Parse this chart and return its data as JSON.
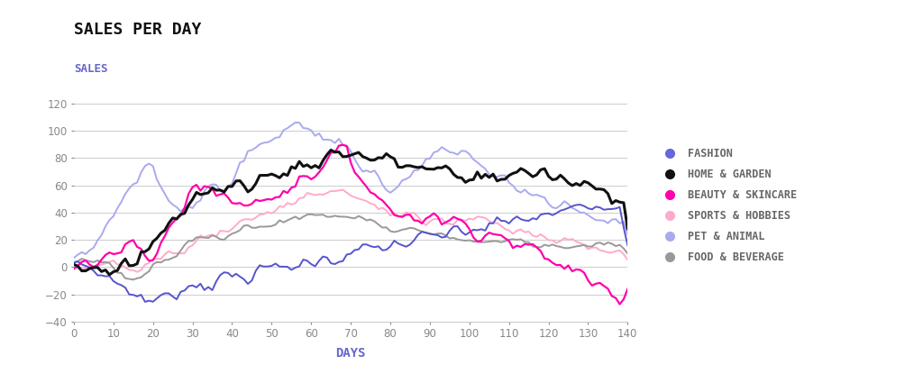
{
  "title": "SALES PER DAY",
  "ylabel_text": "SALES",
  "xlabel": "DAYS",
  "title_color": "#111111",
  "ylabel_color": "#6666cc",
  "xlabel_color": "#6666cc",
  "background_color": "#ffffff",
  "ylim": [
    -40,
    130
  ],
  "xlim": [
    0,
    140
  ],
  "yticks": [
    -40,
    -20,
    0,
    20,
    40,
    60,
    80,
    100,
    120
  ],
  "xticks": [
    0,
    10,
    20,
    30,
    40,
    50,
    60,
    70,
    80,
    90,
    100,
    110,
    120,
    130,
    140
  ],
  "series": {
    "FASHION": {
      "color": "#5555cc",
      "lw": 1.4,
      "zorder": 3
    },
    "HOME & GARDEN": {
      "color": "#111111",
      "lw": 2.2,
      "zorder": 5
    },
    "BEAUTY & SKINCARE": {
      "color": "#ff00aa",
      "lw": 1.6,
      "zorder": 4
    },
    "SPORTS & HOBBIES": {
      "color": "#ffaacc",
      "lw": 1.4,
      "zorder": 2
    },
    "PET & ANIMAL": {
      "color": "#aaaaee",
      "lw": 1.4,
      "zorder": 2
    },
    "FOOD & BEVERAGE": {
      "color": "#999999",
      "lw": 1.4,
      "zorder": 2
    }
  },
  "legend_marker_colors": {
    "FASHION": "#6666dd",
    "HOME & GARDEN": "#111111",
    "BEAUTY & SKINCARE": "#ff00aa",
    "SPORTS & HOBBIES": "#ffaacc",
    "PET & ANIMAL": "#aaaaee",
    "FOOD & BEVERAGE": "#999999"
  },
  "legend_order": [
    "FASHION",
    "HOME & GARDEN",
    "BEAUTY & SKINCARE",
    "SPORTS & HOBBIES",
    "PET & ANIMAL",
    "FOOD & BEVERAGE"
  ]
}
